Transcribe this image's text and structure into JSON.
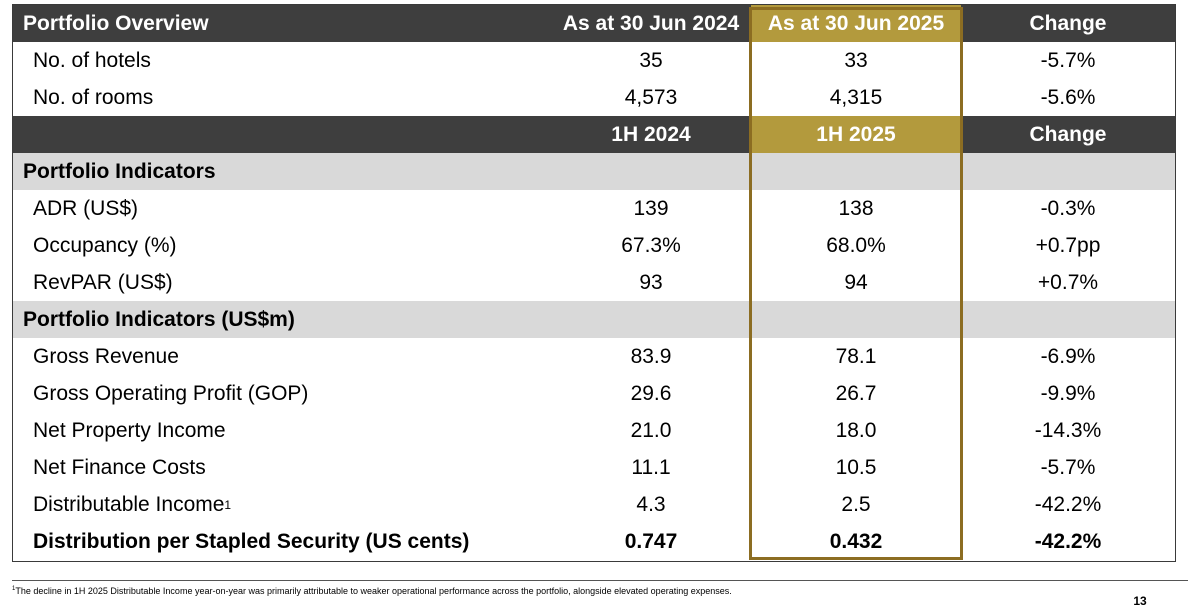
{
  "header1": {
    "label": "Portfolio Overview",
    "col1": "As at 30 Jun 2024",
    "col2": "As at 30 Jun 2025",
    "col3": "Change"
  },
  "overview_rows": [
    {
      "label": "No. of hotels",
      "v1": "35",
      "v2": "33",
      "change": "-5.7%"
    },
    {
      "label": "No. of rooms",
      "v1": "4,573",
      "v2": "4,315",
      "change": "-5.6%"
    }
  ],
  "header2": {
    "col1": "1H 2024",
    "col2": "1H 2025",
    "col3": "Change"
  },
  "section1": {
    "title": "Portfolio Indicators",
    "rows": [
      {
        "label": "ADR (US$)",
        "v1": "139",
        "v2": "138",
        "change": "-0.3%"
      },
      {
        "label": "Occupancy (%)",
        "v1": "67.3%",
        "v2": "68.0%",
        "change": "+0.7pp"
      },
      {
        "label": "RevPAR (US$)",
        "v1": "93",
        "v2": "94",
        "change": "+0.7%"
      }
    ]
  },
  "section2": {
    "title": "Portfolio Indicators (US$m)",
    "rows": [
      {
        "label": "Gross Revenue",
        "v1": "83.9",
        "v2": "78.1",
        "change": "-6.9%"
      },
      {
        "label": "Gross Operating Profit (GOP)",
        "v1": "29.6",
        "v2": "26.7",
        "change": "-9.9%"
      },
      {
        "label": "Net Property Income",
        "v1": "21.0",
        "v2": "18.0",
        "change": "-14.3%"
      },
      {
        "label": "Net Finance Costs",
        "v1": "11.1",
        "v2": "10.5",
        "change": "-5.7%"
      },
      {
        "label": "Distributable Income",
        "footnote_mark": "1",
        "v1": "4.3",
        "v2": "2.5",
        "change": "-42.2%"
      }
    ],
    "total": {
      "label": "Distribution per Stapled Security (US cents)",
      "v1": "0.747",
      "v2": "0.432",
      "change": "-42.2%"
    }
  },
  "footnote": {
    "mark": "1",
    "text": "The decline in 1H 2025 Distributable Income year-on-year was primarily attributable to weaker operational performance across the portfolio, alongside elevated operating expenses."
  },
  "page_number": "13",
  "colors": {
    "header_bg": "#3e3e3e",
    "section_bg": "#d9d9d9",
    "gold_fill": "#b39a3d",
    "gold_border": "#8c6d22"
  }
}
